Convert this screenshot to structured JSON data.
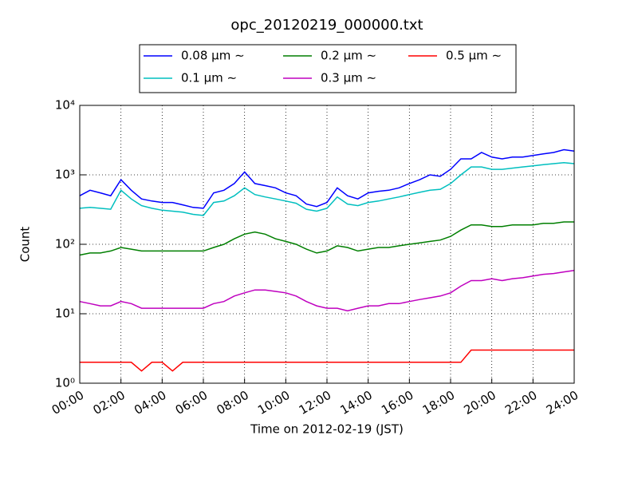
{
  "chart_data": {
    "type": "line",
    "title": "opc_20120219_000000.txt",
    "xlabel": "Time on 2012-02-19 (JST)",
    "ylabel": "Count",
    "log_y": true,
    "grid": true,
    "legend": "top",
    "x": [
      0,
      0.5,
      1,
      1.5,
      2,
      2.5,
      3,
      3.5,
      4,
      4.5,
      5,
      5.5,
      6,
      6.5,
      7,
      7.5,
      8,
      8.5,
      9,
      9.5,
      10,
      10.5,
      11,
      11.5,
      12,
      12.5,
      13,
      13.5,
      14,
      14.5,
      15,
      15.5,
      16,
      16.5,
      17,
      17.5,
      18,
      18.5,
      19,
      19.5,
      20,
      20.5,
      21,
      21.5,
      22,
      22.5,
      23,
      23.5,
      24
    ],
    "xlim": [
      0,
      24
    ],
    "xticks": [
      {
        "value": 0,
        "label": "00:00"
      },
      {
        "value": 2,
        "label": "02:00"
      },
      {
        "value": 4,
        "label": "04:00"
      },
      {
        "value": 6,
        "label": "06:00"
      },
      {
        "value": 8,
        "label": "08:00"
      },
      {
        "value": 10,
        "label": "10:00"
      },
      {
        "value": 12,
        "label": "12:00"
      },
      {
        "value": 14,
        "label": "14:00"
      },
      {
        "value": 16,
        "label": "16:00"
      },
      {
        "value": 18,
        "label": "18:00"
      },
      {
        "value": 20,
        "label": "20:00"
      },
      {
        "value": 22,
        "label": "22:00"
      },
      {
        "value": 24,
        "label": "24:00"
      }
    ],
    "ylim": [
      1,
      10000
    ],
    "yticks": [
      {
        "value": 1,
        "label": "10⁰"
      },
      {
        "value": 10,
        "label": "10¹"
      },
      {
        "value": 100,
        "label": "10²"
      },
      {
        "value": 1000,
        "label": "10³"
      },
      {
        "value": 10000,
        "label": "10⁴"
      }
    ],
    "series": [
      {
        "name": "0.08 μm ∼",
        "color": "#0000ff",
        "values": [
          500,
          600,
          550,
          500,
          850,
          600,
          450,
          420,
          400,
          400,
          370,
          340,
          330,
          550,
          600,
          750,
          1100,
          750,
          700,
          650,
          550,
          500,
          380,
          350,
          400,
          650,
          500,
          450,
          550,
          580,
          600,
          650,
          750,
          850,
          1000,
          950,
          1200,
          1700,
          1700,
          2100,
          1800,
          1700,
          1800,
          1800,
          1900,
          2000,
          2100,
          2300,
          2200
        ]
      },
      {
        "name": "0.1 μm ∼",
        "color": "#00bfbf",
        "values": [
          330,
          340,
          330,
          320,
          600,
          450,
          360,
          330,
          310,
          300,
          290,
          270,
          260,
          400,
          420,
          500,
          650,
          520,
          480,
          450,
          420,
          390,
          320,
          300,
          330,
          480,
          380,
          360,
          400,
          420,
          450,
          480,
          520,
          560,
          600,
          620,
          750,
          1000,
          1300,
          1300,
          1200,
          1200,
          1250,
          1300,
          1350,
          1400,
          1450,
          1500,
          1450
        ]
      },
      {
        "name": "0.2 μm ∼",
        "color": "#007f00",
        "values": [
          70,
          75,
          75,
          80,
          90,
          85,
          80,
          80,
          80,
          80,
          80,
          80,
          80,
          90,
          100,
          120,
          140,
          150,
          140,
          120,
          110,
          100,
          85,
          75,
          80,
          95,
          90,
          80,
          85,
          90,
          90,
          95,
          100,
          105,
          110,
          115,
          130,
          160,
          190,
          190,
          180,
          180,
          190,
          190,
          190,
          200,
          200,
          210,
          210
        ]
      },
      {
        "name": "0.3 μm ∼",
        "color": "#bf00bf",
        "values": [
          15,
          14,
          13,
          13,
          15,
          14,
          12,
          12,
          12,
          12,
          12,
          12,
          12,
          14,
          15,
          18,
          20,
          22,
          22,
          21,
          20,
          18,
          15,
          13,
          12,
          12,
          11,
          12,
          13,
          13,
          14,
          14,
          15,
          16,
          17,
          18,
          20,
          25,
          30,
          30,
          32,
          30,
          32,
          33,
          35,
          37,
          38,
          40,
          42
        ]
      },
      {
        "name": "0.5 μm ∼",
        "color": "#ff0000",
        "values": [
          2,
          2,
          2,
          2,
          2,
          2,
          1.5,
          2,
          2,
          1.5,
          2,
          2,
          2,
          2,
          2,
          2,
          2,
          2,
          2,
          2,
          2,
          2,
          2,
          2,
          2,
          2,
          2,
          2,
          2,
          2,
          2,
          2,
          2,
          2,
          2,
          2,
          2,
          2,
          3,
          3,
          3,
          3,
          3,
          3,
          3,
          3,
          3,
          3,
          3
        ]
      }
    ]
  }
}
